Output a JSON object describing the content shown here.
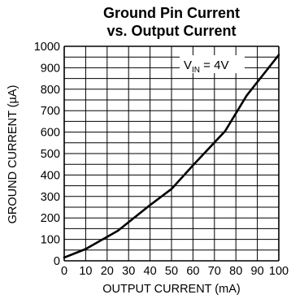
{
  "chart_data": {
    "type": "line",
    "title": "Ground Pin Current",
    "subtitle": "vs. Output Current",
    "xlabel": "OUTPUT CURRENT (mA)",
    "ylabel": "GROUND CURRENT (µA)",
    "xlim": [
      0,
      100
    ],
    "ylim": [
      0,
      1000
    ],
    "x_ticks": [
      "0",
      "10",
      "20",
      "30",
      "40",
      "50",
      "60",
      "70",
      "80",
      "90",
      "100"
    ],
    "y_ticks": [
      "0",
      "100",
      "200",
      "300",
      "400",
      "500",
      "600",
      "700",
      "800",
      "900",
      "1000"
    ],
    "grid": true,
    "annotation": {
      "base": "V",
      "sub": "IN",
      "rest": " = 4V"
    },
    "series": [
      {
        "x": [
          0,
          10,
          25,
          40,
          50,
          60,
          75,
          85,
          100
        ],
        "y": [
          15,
          55,
          140,
          260,
          335,
          445,
          605,
          770,
          960
        ]
      }
    ]
  }
}
